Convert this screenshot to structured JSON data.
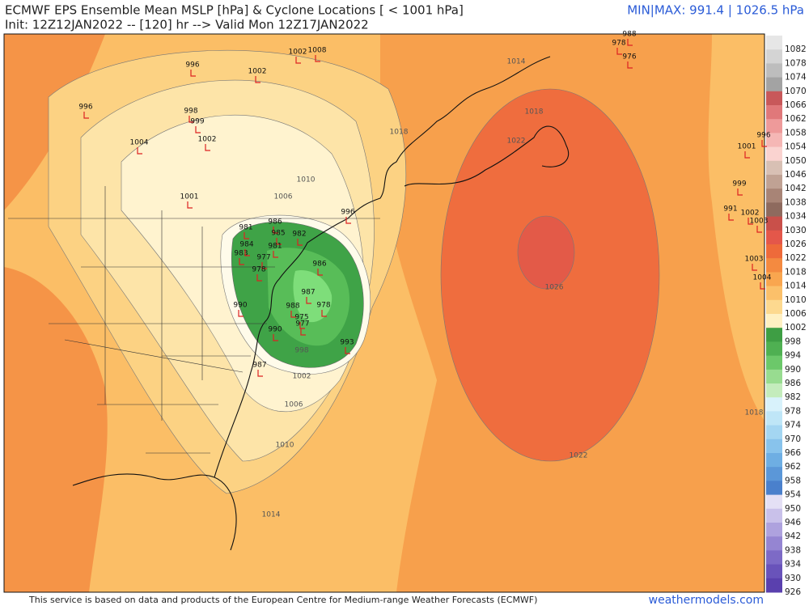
{
  "header": {
    "title": "ECMWF EPS Ensemble Mean MSLP [hPa] & Cyclone Locations [ < 1001 hPa]",
    "subtitle": "Init: 12Z12JAN2022 -- [120] hr --> Valid Mon 12Z17JAN2022",
    "minmax": "MIN|MAX: 991.4 | 1026.5 hPa"
  },
  "colorbar": {
    "labels": [
      "1082",
      "1078",
      "1074",
      "1070",
      "1066",
      "1062",
      "1058",
      "1054",
      "1050",
      "1046",
      "1042",
      "1038",
      "1034",
      "1030",
      "1026",
      "1022",
      "1018",
      "1014",
      "1010",
      "1006",
      "1002",
      "998",
      "994",
      "990",
      "986",
      "982",
      "978",
      "974",
      "970",
      "966",
      "962",
      "958",
      "954",
      "950",
      "946",
      "942",
      "938",
      "934",
      "930",
      "926"
    ],
    "colors": [
      "#e6e6e6",
      "#d4d4d4",
      "#bdbdbd",
      "#a3a3a3",
      "#c8585a",
      "#e0787a",
      "#ee9a9a",
      "#f5b7b5",
      "#fad3d0",
      "#d8c0b4",
      "#c0a294",
      "#a88476",
      "#8e6a5e",
      "#c9504a",
      "#e4574a",
      "#ee6a3a",
      "#f48a40",
      "#f9a64f",
      "#fbc06a",
      "#fdd98f",
      "#fff0c2",
      "#3e9e44",
      "#4fb052",
      "#6cc86a",
      "#98dc90",
      "#c4ecbc",
      "#d8f2fb",
      "#bfe6f7",
      "#a4d6f2",
      "#88c3ec",
      "#6eaee3",
      "#5b97d8",
      "#4a80cc",
      "#e4e0f5",
      "#c9c1ea",
      "#aea2de",
      "#9585d2",
      "#7d6ac6",
      "#6953ba",
      "#5a40ae"
    ]
  },
  "contour_labels": [
    "1014",
    "1018",
    "1018",
    "1022",
    "1026",
    "1022",
    "1018",
    "1010",
    "1006",
    "998",
    "1002",
    "1006",
    "1010",
    "1014"
  ],
  "cyclones": [
    "988",
    "978",
    "976",
    "996",
    "1002",
    "1002",
    "1008",
    "996",
    "998",
    "999",
    "1002",
    "1004",
    "1001",
    "981",
    "986",
    "982",
    "983",
    "985",
    "977",
    "981",
    "984",
    "978",
    "990",
    "987",
    "988",
    "978",
    "993",
    "975",
    "977",
    "987",
    "990",
    "986",
    "996",
    "1001",
    "999",
    "991",
    "1002",
    "1003",
    "1003",
    "1004",
    "996"
  ],
  "footer": {
    "credit": "This service is based on data and products of the European Centre for Medium-range Weather Forecasts (ECMWF)",
    "site": "weathermodels.com"
  }
}
